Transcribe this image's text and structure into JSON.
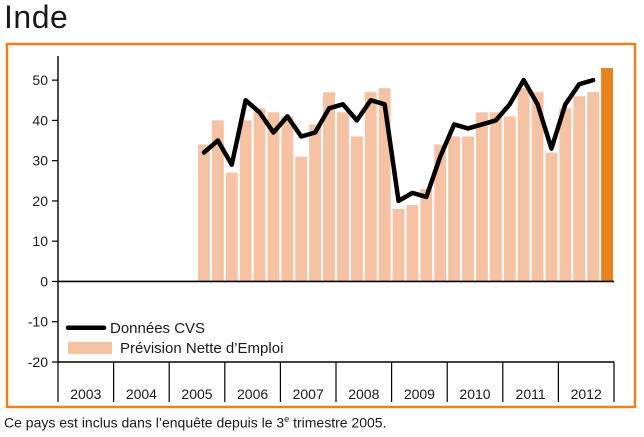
{
  "page": {
    "title": "Inde",
    "footnote": {
      "before": "Ce pays est inclus dans l’enquête depuis le 3",
      "superscript": "e",
      "after": " trimestre 2005."
    }
  },
  "chart_data": {
    "type": "bar",
    "title": "Inde",
    "xlabel": "",
    "ylabel": "",
    "ylim": [
      -20,
      55
    ],
    "yticks": [
      50,
      40,
      30,
      20,
      10,
      0,
      -10,
      -20
    ],
    "year_labels": [
      "2003",
      "2004",
      "2005",
      "2006",
      "2007",
      "2008",
      "2009",
      "2010",
      "2011",
      "2012"
    ],
    "quarters_start": "2003-Q1",
    "categories": [
      "2003-Q1",
      "2003-Q2",
      "2003-Q3",
      "2003-Q4",
      "2004-Q1",
      "2004-Q2",
      "2004-Q3",
      "2004-Q4",
      "2005-Q1",
      "2005-Q2",
      "2005-Q3",
      "2005-Q4",
      "2006-Q1",
      "2006-Q2",
      "2006-Q3",
      "2006-Q4",
      "2007-Q1",
      "2007-Q2",
      "2007-Q3",
      "2007-Q4",
      "2008-Q1",
      "2008-Q2",
      "2008-Q3",
      "2008-Q4",
      "2009-Q1",
      "2009-Q2",
      "2009-Q3",
      "2009-Q4",
      "2010-Q1",
      "2010-Q2",
      "2010-Q3",
      "2010-Q4",
      "2011-Q1",
      "2011-Q2",
      "2011-Q3",
      "2011-Q4",
      "2012-Q1",
      "2012-Q2",
      "2012-Q3",
      "2012-Q4"
    ],
    "series": [
      {
        "name": "Prévision Nette d’Emploi",
        "kind": "bar",
        "color": "#f5c2a4",
        "values": [
          null,
          null,
          null,
          null,
          null,
          null,
          null,
          null,
          null,
          null,
          34,
          40,
          27,
          40,
          43,
          42,
          41,
          31,
          39,
          47,
          42,
          36,
          47,
          48,
          18,
          19,
          23,
          34,
          36,
          36,
          42,
          42,
          41,
          48,
          47,
          32,
          43,
          46,
          47,
          null
        ]
      },
      {
        "name": "Données CVS",
        "kind": "line",
        "color": "#000000",
        "values": [
          null,
          null,
          null,
          null,
          null,
          null,
          null,
          null,
          null,
          null,
          32,
          35,
          29,
          45,
          42,
          37,
          41,
          36,
          37,
          43,
          44,
          40,
          45,
          44,
          20,
          22,
          21,
          31,
          39,
          38,
          39,
          40,
          44,
          50,
          44,
          33,
          44,
          49,
          50,
          null
        ]
      },
      {
        "name": "Prévision Nette d’Emploi (latest quarter)",
        "kind": "bar",
        "color": "#e8821e",
        "values": [
          null,
          null,
          null,
          null,
          null,
          null,
          null,
          null,
          null,
          null,
          null,
          null,
          null,
          null,
          null,
          null,
          null,
          null,
          null,
          null,
          null,
          null,
          null,
          null,
          null,
          null,
          null,
          null,
          null,
          null,
          null,
          null,
          null,
          null,
          null,
          null,
          null,
          null,
          null,
          53
        ]
      }
    ],
    "legend": {
      "position": "lower-left",
      "items": [
        "Données CVS",
        "Prévision Nette d’Emploi"
      ]
    },
    "grid": false,
    "colors": {
      "frame": "#e8821e",
      "axis": "#000000"
    }
  }
}
